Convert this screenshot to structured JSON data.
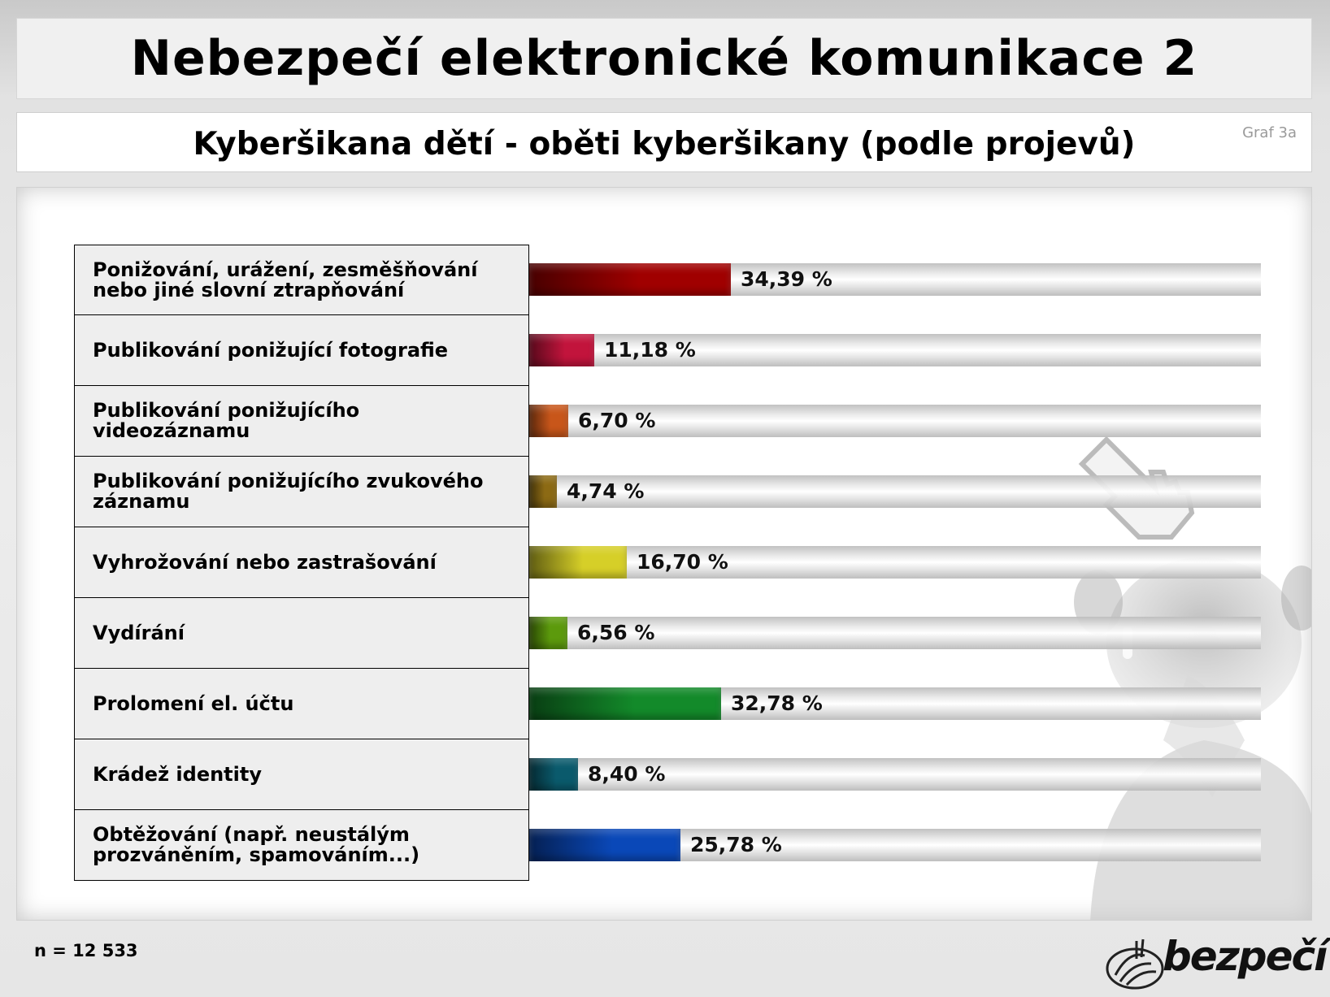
{
  "header": {
    "title": "Nebezpečí elektronické komunikace 2",
    "subtitle": "Kyberšikana dětí - oběti kyberšikany (podle projevů)",
    "graph_tag": "Graf 3a"
  },
  "footer": {
    "sample_size": "n = 12 533",
    "logo_text": "bezpečí"
  },
  "chart_data": {
    "type": "bar",
    "orientation": "horizontal",
    "categories": [
      "Ponižování, urážení, zesměšňování nebo jiné slovní ztrapňování",
      "Publikování ponižující fotografie",
      "Publikování ponižujícího videozáznamu",
      "Publikování ponižujícího zvukového záznamu",
      "Vyhrožování nebo zastrašování",
      "Vydírání",
      "Prolomení el. účtu",
      "Krádež identity",
      "Obtěžování (např. neustálým prozváněním, spamováním...)"
    ],
    "values": [
      34.39,
      11.18,
      6.7,
      4.74,
      16.7,
      6.56,
      32.78,
      8.4,
      25.78
    ],
    "value_labels": [
      "34,39 %",
      "11,18 %",
      "6,70 %",
      "4,74 %",
      "16,70 %",
      "6,56 %",
      "32,78 %",
      "8,40 %",
      "25,78 %"
    ],
    "colors": [
      "#a00000",
      "#c2143c",
      "#c8561a",
      "#8c6a14",
      "#d6cf28",
      "#5c9a0c",
      "#138a2a",
      "#0a5a6c",
      "#0a48b8"
    ],
    "xlim": [
      0,
      125
    ],
    "grid": false,
    "legend": "none",
    "title": "Kyberšikana dětí - oběti kyberšikany (podle projevů)"
  }
}
